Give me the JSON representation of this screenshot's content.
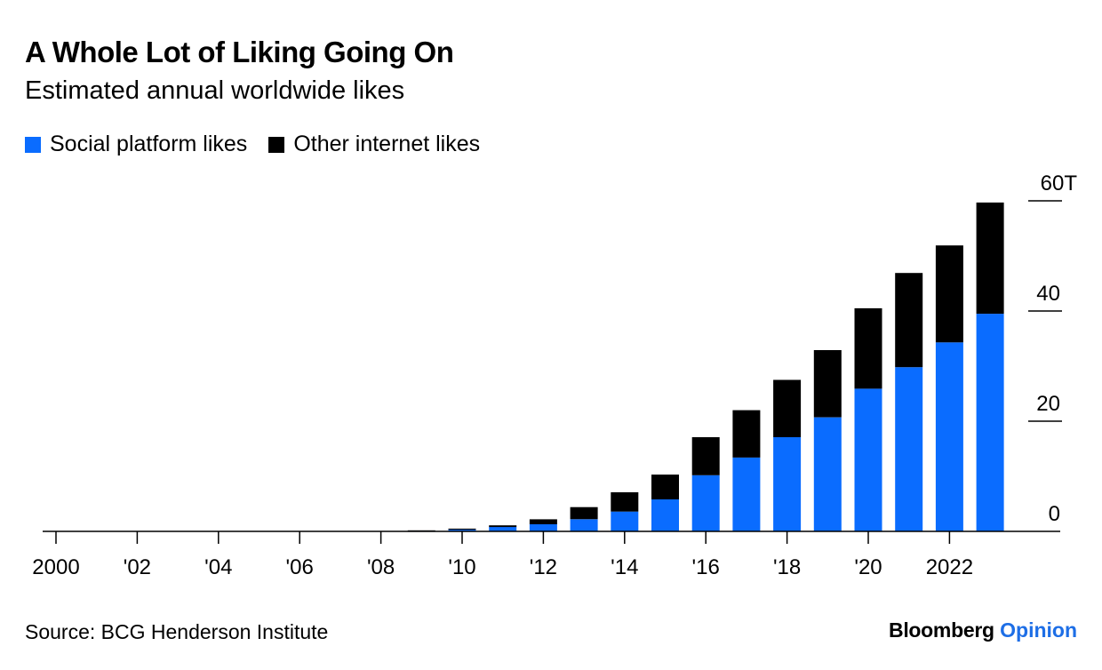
{
  "chart_data": {
    "type": "bar",
    "stacked": true,
    "title": "A Whole Lot of Liking Going On",
    "subtitle": "Estimated annual worldwide likes",
    "x": [
      2000,
      2001,
      2002,
      2003,
      2004,
      2005,
      2006,
      2007,
      2008,
      2009,
      2010,
      2011,
      2012,
      2013,
      2014,
      2015,
      2016,
      2017,
      2018,
      2019,
      2020,
      2021,
      2022,
      2023
    ],
    "x_tick_values": [
      2000,
      2002,
      2004,
      2006,
      2008,
      2010,
      2012,
      2014,
      2016,
      2018,
      2020,
      2022
    ],
    "x_tick_labels": [
      "2000",
      "'02",
      "'04",
      "'06",
      "'08",
      "'10",
      "'12",
      "'14",
      "'16",
      "'18",
      "'20",
      "2022"
    ],
    "series": [
      {
        "name": "Social platform likes",
        "color": "#0a6cff",
        "values": [
          0,
          0,
          0,
          0,
          0,
          0,
          0,
          0,
          0,
          0.1,
          0.3,
          0.8,
          1.3,
          2.2,
          3.6,
          5.8,
          10.2,
          13.4,
          17.1,
          20.7,
          25.9,
          29.8,
          34.3,
          39.5
        ]
      },
      {
        "name": "Other internet likes",
        "color": "#000000",
        "values": [
          0,
          0,
          0,
          0,
          0,
          0,
          0,
          0,
          0,
          0.1,
          0.2,
          0.3,
          0.9,
          2.2,
          3.5,
          4.5,
          6.9,
          8.6,
          10.4,
          12.2,
          14.6,
          17.1,
          17.6,
          20.2
        ]
      }
    ],
    "y_ticks": [
      0,
      20,
      40,
      60
    ],
    "y_tick_labels": [
      "0",
      "20",
      "40",
      "60T"
    ],
    "ylim": [
      0,
      60
    ],
    "y_axis_position": "right",
    "legend_position": "top-left",
    "grid": false,
    "source": "Source: BCG Henderson Institute",
    "brand": {
      "name": "Bloomberg",
      "section": "Opinion"
    }
  }
}
